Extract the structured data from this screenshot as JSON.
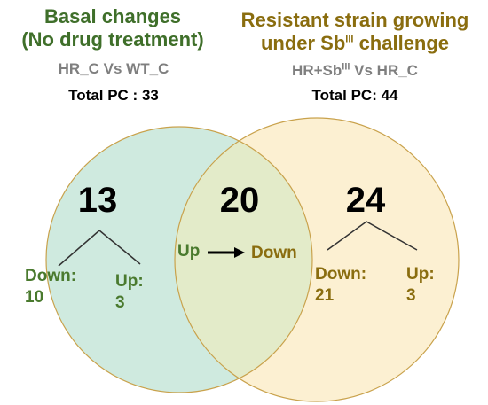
{
  "left_set": {
    "title_line1": "Basal changes",
    "title_line2": "(No drug treatment)",
    "comparison": "HR_C Vs WT_C",
    "total_label": "Total PC : 33",
    "count": "13",
    "down_label": "Down:",
    "down_value": "10",
    "up_label": "Up:",
    "up_value": "3",
    "fill_color": "#cfeadf",
    "title_color": "#3f6f2a"
  },
  "right_set": {
    "title_line1": "Resistant strain growing",
    "title_line2_prefix": "under Sb",
    "title_line2_sup": "III",
    "title_line2_suffix": " challenge",
    "comparison_prefix": "HR+Sb",
    "comparison_sup": "III",
    "comparison_suffix": " Vs HR_C",
    "total_label": "Total PC: 44",
    "count": "24",
    "down_label": "Down:",
    "down_value": "21",
    "up_label": "Up:",
    "up_value": "3",
    "fill_color": "#fcf0d2",
    "title_color": "#8a6d0f"
  },
  "overlap": {
    "count": "20",
    "from_label": "Up",
    "to_label": "Down",
    "fill_color": "#e3ebc9"
  }
}
